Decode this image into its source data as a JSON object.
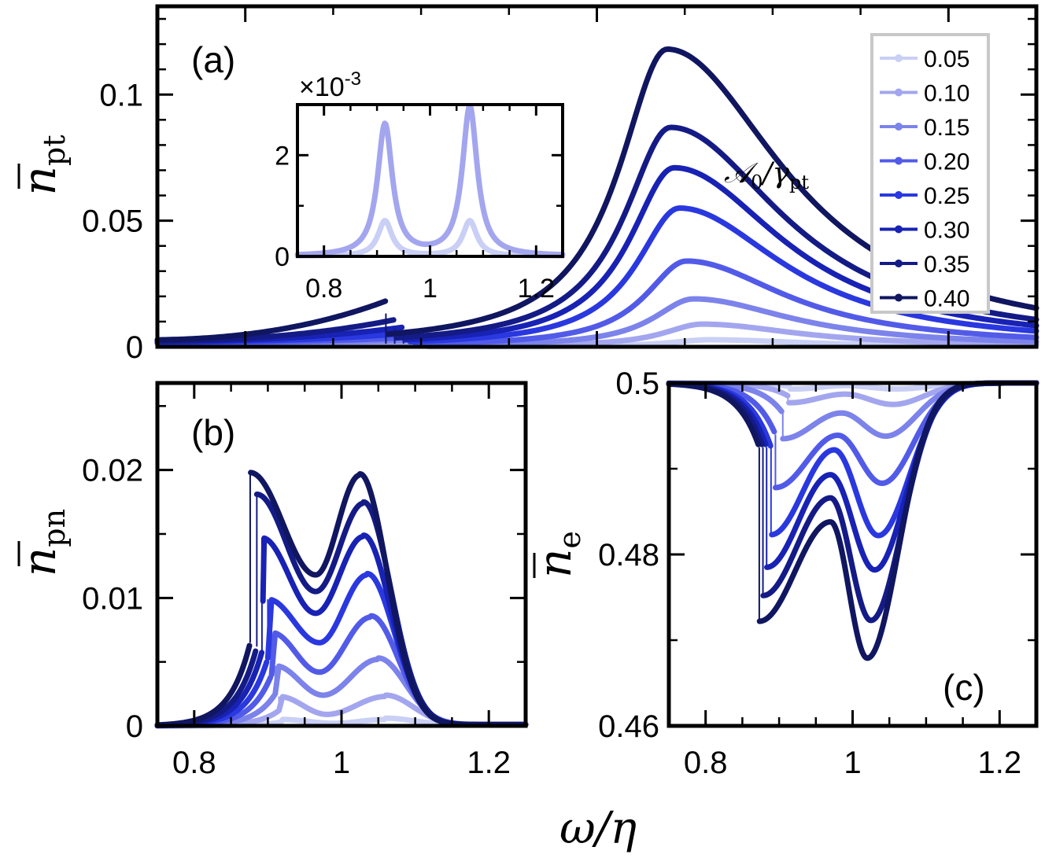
{
  "figure": {
    "xlabel": "ω/η",
    "legend_title_main": "𝒜",
    "legend_title_sub0": "0",
    "legend_title_sep": "/γ",
    "legend_title_sub": "pt"
  },
  "colors": [
    "#c9cff5",
    "#a3a6ee",
    "#7c83ea",
    "#525be8",
    "#2a38e0",
    "#1822b4",
    "#141b86",
    "#101660"
  ],
  "chart_data": [
    {
      "id": "a",
      "type": "line",
      "panel_label": "(a)",
      "ylabel_main": "n",
      "ylabel_sub": "pt",
      "xlim": [
        0.75,
        1.25
      ],
      "ylim": [
        0,
        0.135
      ],
      "xticks": [
        0.8,
        1.0,
        1.2
      ],
      "yticks": [
        0,
        0.05,
        0.1
      ],
      "ytick_labels": [
        "0",
        "0.05",
        "0.1"
      ],
      "grid": false,
      "legend": {
        "placement": "top-right",
        "entries": [
          "0.05",
          "0.10",
          "0.15",
          "0.20",
          "0.25",
          "0.30",
          "0.35",
          "0.40"
        ]
      },
      "series": [
        {
          "name": "0.05",
          "jump_x": 0.904,
          "left_peak_y": 0.0003,
          "right_peak_x": 1.064,
          "right_peak_y": 0.0028,
          "width": 0.045
        },
        {
          "name": "0.10",
          "jump_x": 0.902,
          "left_peak_y": 0.0006,
          "right_peak_x": 1.06,
          "right_peak_y": 0.009,
          "width": 0.046
        },
        {
          "name": "0.15",
          "jump_x": 0.899,
          "left_peak_y": 0.001,
          "right_peak_x": 1.055,
          "right_peak_y": 0.019,
          "width": 0.047
        },
        {
          "name": "0.20",
          "jump_x": 0.896,
          "left_peak_y": 0.0015,
          "right_peak_x": 1.051,
          "right_peak_y": 0.034,
          "width": 0.048
        },
        {
          "name": "0.25",
          "jump_x": 0.893,
          "left_peak_y": 0.0022,
          "right_peak_x": 1.047,
          "right_peak_y": 0.055,
          "width": 0.05
        },
        {
          "name": "0.30",
          "jump_x": 0.89,
          "left_peak_y": 0.0038,
          "right_peak_x": 1.044,
          "right_peak_y": 0.071,
          "width": 0.052
        },
        {
          "name": "0.35",
          "jump_x": 0.885,
          "left_peak_y": 0.006,
          "right_peak_x": 1.042,
          "right_peak_y": 0.087,
          "width": 0.054
        },
        {
          "name": "0.40",
          "jump_x": 0.88,
          "left_peak_y": 0.012,
          "right_peak_x": 1.04,
          "right_peak_y": 0.118,
          "width": 0.056
        }
      ],
      "inset": {
        "multiplier_label": "×10",
        "multiplier_exp": "-3",
        "xlim": [
          0.75,
          1.25
        ],
        "ylim": [
          0,
          3
        ],
        "xticks": [
          0.8,
          1.0,
          1.2
        ],
        "yticks": [
          0,
          2
        ],
        "ytick_labels": [
          "0",
          "2"
        ],
        "series": [
          {
            "name": "0.05",
            "peaks": [
              [
                0.915,
                0.7
              ],
              [
                1.075,
                0.7
              ]
            ],
            "width": 0.016
          },
          {
            "name": "0.10",
            "peaks": [
              [
                0.915,
                2.6
              ],
              [
                1.075,
                2.95
              ]
            ],
            "width": 0.017
          }
        ]
      }
    },
    {
      "id": "b",
      "type": "line",
      "panel_label": "(b)",
      "ylabel_main": "n",
      "ylabel_sub": "pn",
      "xlim": [
        0.75,
        1.25
      ],
      "ylim": [
        0,
        0.0268
      ],
      "xticks": [
        0.8,
        1.0,
        1.2
      ],
      "yticks": [
        0,
        0.01,
        0.02
      ],
      "ytick_labels": [
        "0",
        "0.01",
        "0.02"
      ],
      "grid": false,
      "series": [
        {
          "name": "0.05",
          "jump_x": 0.918,
          "jump_low": 0.0003,
          "p1": [
            0.92,
            0.0005
          ],
          "mid": [
            0.99,
            0.0002
          ],
          "p2": [
            1.06,
            0.0005
          ]
        },
        {
          "name": "0.10",
          "jump_x": 0.915,
          "jump_low": 0.0012,
          "p1": [
            0.92,
            0.0023
          ],
          "mid": [
            0.98,
            0.0009
          ],
          "p2": [
            1.06,
            0.0023
          ]
        },
        {
          "name": "0.15",
          "jump_x": 0.91,
          "jump_low": 0.0025,
          "p1": [
            0.915,
            0.0047
          ],
          "mid": [
            0.975,
            0.0024
          ],
          "p2": [
            1.05,
            0.0052
          ]
        },
        {
          "name": "0.20",
          "jump_x": 0.905,
          "jump_low": 0.004,
          "p1": [
            0.91,
            0.0073
          ],
          "mid": [
            0.97,
            0.0042
          ],
          "p2": [
            1.04,
            0.0085
          ]
        },
        {
          "name": "0.25",
          "jump_x": 0.9,
          "jump_low": 0.0053,
          "p1": [
            0.905,
            0.0099
          ],
          "mid": [
            0.97,
            0.0065
          ],
          "p2": [
            1.035,
            0.0118
          ]
        },
        {
          "name": "0.30",
          "jump_x": 0.892,
          "jump_low": 0.0058,
          "p1": [
            0.895,
            0.0147
          ],
          "mid": [
            0.965,
            0.0088
          ],
          "p2": [
            1.03,
            0.0148
          ]
        },
        {
          "name": "0.35",
          "jump_x": 0.885,
          "jump_low": 0.0062,
          "p1": [
            0.885,
            0.0181
          ],
          "mid": [
            0.965,
            0.0105
          ],
          "p2": [
            1.03,
            0.0174
          ]
        },
        {
          "name": "0.40",
          "jump_x": 0.876,
          "jump_low": 0.0065,
          "p1": [
            0.876,
            0.0198
          ],
          "mid": [
            0.965,
            0.0118
          ],
          "p2": [
            1.025,
            0.0196
          ]
        }
      ]
    },
    {
      "id": "c",
      "type": "line",
      "panel_label": "(c)",
      "ylabel_main": "n",
      "ylabel_sub": "e",
      "xlim": [
        0.75,
        1.25
      ],
      "ylim": [
        0.46,
        0.5
      ],
      "xticks": [
        0.8,
        1.0,
        1.2
      ],
      "yticks": [
        0.46,
        0.48,
        0.5
      ],
      "ytick_labels": [
        "0.46",
        "0.48",
        "0.5"
      ],
      "grid": false,
      "series": [
        {
          "name": "0.05",
          "jump_x": 0.915,
          "jump_low": 0.4996,
          "d1": [
            0.92,
            0.4993
          ],
          "mid": [
            0.99,
            0.4997
          ],
          "d2": [
            1.06,
            0.4993
          ]
        },
        {
          "name": "0.10",
          "jump_x": 0.912,
          "jump_low": 0.4985,
          "d1": [
            0.915,
            0.4977
          ],
          "mid": [
            0.99,
            0.4987
          ],
          "d2": [
            1.055,
            0.4975
          ]
        },
        {
          "name": "0.15",
          "jump_x": 0.905,
          "jump_low": 0.4965,
          "d1": [
            0.905,
            0.4935
          ],
          "mid": [
            0.985,
            0.4965
          ],
          "d2": [
            1.045,
            0.4938
          ]
        },
        {
          "name": "0.20",
          "jump_x": 0.895,
          "jump_low": 0.494,
          "d1": [
            0.895,
            0.4878
          ],
          "mid": [
            0.98,
            0.4939
          ],
          "d2": [
            1.04,
            0.4883
          ]
        },
        {
          "name": "0.25",
          "jump_x": 0.889,
          "jump_low": 0.4925,
          "d1": [
            0.889,
            0.4823
          ],
          "mid": [
            0.975,
            0.4922
          ],
          "d2": [
            1.035,
            0.4822
          ]
        },
        {
          "name": "0.30",
          "jump_x": 0.883,
          "jump_low": 0.4925,
          "d1": [
            0.883,
            0.4785
          ],
          "mid": [
            0.97,
            0.4893
          ],
          "d2": [
            1.03,
            0.4782
          ]
        },
        {
          "name": "0.35",
          "jump_x": 0.878,
          "jump_low": 0.4925,
          "d1": [
            0.878,
            0.4752
          ],
          "mid": [
            0.97,
            0.4866
          ],
          "d2": [
            1.025,
            0.4723
          ]
        },
        {
          "name": "0.40",
          "jump_x": 0.873,
          "jump_low": 0.4925,
          "d1": [
            0.873,
            0.4722
          ],
          "mid": [
            0.97,
            0.4838
          ],
          "d2": [
            1.02,
            0.4679
          ]
        }
      ]
    }
  ]
}
